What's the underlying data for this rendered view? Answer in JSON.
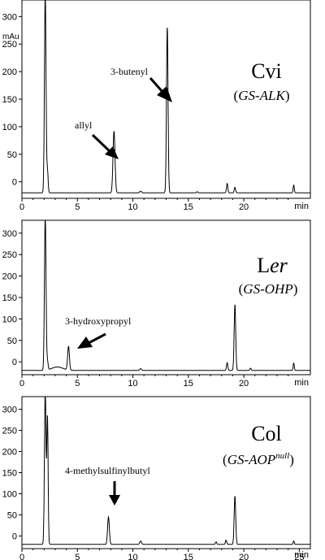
{
  "chart_data": [
    {
      "type": "line",
      "ylabel": "mAu",
      "xlabel": "min",
      "xlim": [
        0,
        26
      ],
      "ylim": [
        -30,
        330
      ],
      "xticks": [
        0,
        5,
        10,
        15,
        20
      ],
      "yticks": [
        0,
        50,
        100,
        150,
        200,
        250,
        300
      ],
      "ytick_labels": [
        "0",
        "50",
        "100",
        "150",
        "200",
        "250",
        "300"
      ],
      "sample": "Cvi",
      "genotype": "(GS-ALK)",
      "genotype_main": "GS-ALK",
      "genotype_sup": "",
      "baseline": -20,
      "peaks": [
        {
          "x": 2.1,
          "y": 345,
          "w": 0.07
        },
        {
          "x": 2.3,
          "y": 20,
          "w": 0.06
        },
        {
          "x": 8.3,
          "y": 92,
          "w": 0.09
        },
        {
          "x": 10.7,
          "y": -17,
          "w": 0.08
        },
        {
          "x": 13.1,
          "y": 280,
          "w": 0.07
        },
        {
          "x": 15.8,
          "y": -18,
          "w": 0.06
        },
        {
          "x": 18.5,
          "y": -3,
          "w": 0.06
        },
        {
          "x": 19.2,
          "y": -10,
          "w": 0.06
        },
        {
          "x": 24.5,
          "y": -6,
          "w": 0.05
        }
      ],
      "annotations": [
        {
          "text": "allyl",
          "x": 8.3,
          "y": 92
        },
        {
          "text": "3-butenyl",
          "x": 13.1,
          "y": 180
        }
      ]
    },
    {
      "type": "line",
      "ylabel": "",
      "xlabel": "min",
      "xlim": [
        0,
        26
      ],
      "ylim": [
        -30,
        330
      ],
      "xticks": [
        0,
        5,
        10,
        15,
        20
      ],
      "yticks": [
        0,
        50,
        100,
        150,
        200,
        250,
        300
      ],
      "ytick_labels": [
        "0",
        "50",
        "100",
        "150",
        "200",
        "250",
        "300"
      ],
      "sample": "Ler",
      "sample_main": "L",
      "sample_italic": "er",
      "genotype": "(GS-OHP)",
      "genotype_main": "GS-OHP",
      "genotype_sup": "",
      "baseline": -20,
      "peaks": [
        {
          "x": 2.1,
          "y": 340,
          "w": 0.07
        },
        {
          "x": 2.3,
          "y": 0,
          "w": 0.06
        },
        {
          "x": 3.2,
          "y": -12,
          "w": 0.5
        },
        {
          "x": 4.2,
          "y": 35,
          "w": 0.08
        },
        {
          "x": 10.7,
          "y": -16,
          "w": 0.08
        },
        {
          "x": 18.5,
          "y": -2,
          "w": 0.06
        },
        {
          "x": 19.2,
          "y": 133,
          "w": 0.07
        },
        {
          "x": 20.6,
          "y": -15,
          "w": 0.06
        },
        {
          "x": 24.5,
          "y": -3,
          "w": 0.05
        }
      ],
      "annotations": [
        {
          "text": "3-hydroxypropyl",
          "x": 4.2,
          "y": 35
        }
      ]
    },
    {
      "type": "line",
      "ylabel": "",
      "xlabel": "min",
      "xlim": [
        0,
        26
      ],
      "ylim": [
        -30,
        330
      ],
      "xticks": [
        0,
        5,
        10,
        15,
        20,
        25
      ],
      "yticks": [
        0,
        50,
        100,
        150,
        200,
        250,
        300
      ],
      "ytick_labels": [
        "0",
        "50",
        "100",
        "150",
        "200",
        "250",
        "300"
      ],
      "sample": "Col",
      "genotype": "(GS-AOPnull)",
      "genotype_main": "GS-AOP",
      "genotype_sup": "null",
      "baseline": -20,
      "peaks": [
        {
          "x": 2.1,
          "y": 345,
          "w": 0.07
        },
        {
          "x": 2.3,
          "y": 280,
          "w": 0.06
        },
        {
          "x": 7.8,
          "y": 45,
          "w": 0.08
        },
        {
          "x": 10.7,
          "y": -12,
          "w": 0.08
        },
        {
          "x": 17.5,
          "y": -14,
          "w": 0.06
        },
        {
          "x": 18.4,
          "y": -10,
          "w": 0.06
        },
        {
          "x": 19.2,
          "y": 94,
          "w": 0.07
        },
        {
          "x": 24.5,
          "y": -12,
          "w": 0.05
        }
      ],
      "annotations": [
        {
          "text": "4-methylsulfinylbutyl",
          "x": 7.8,
          "y": 45
        }
      ]
    }
  ]
}
